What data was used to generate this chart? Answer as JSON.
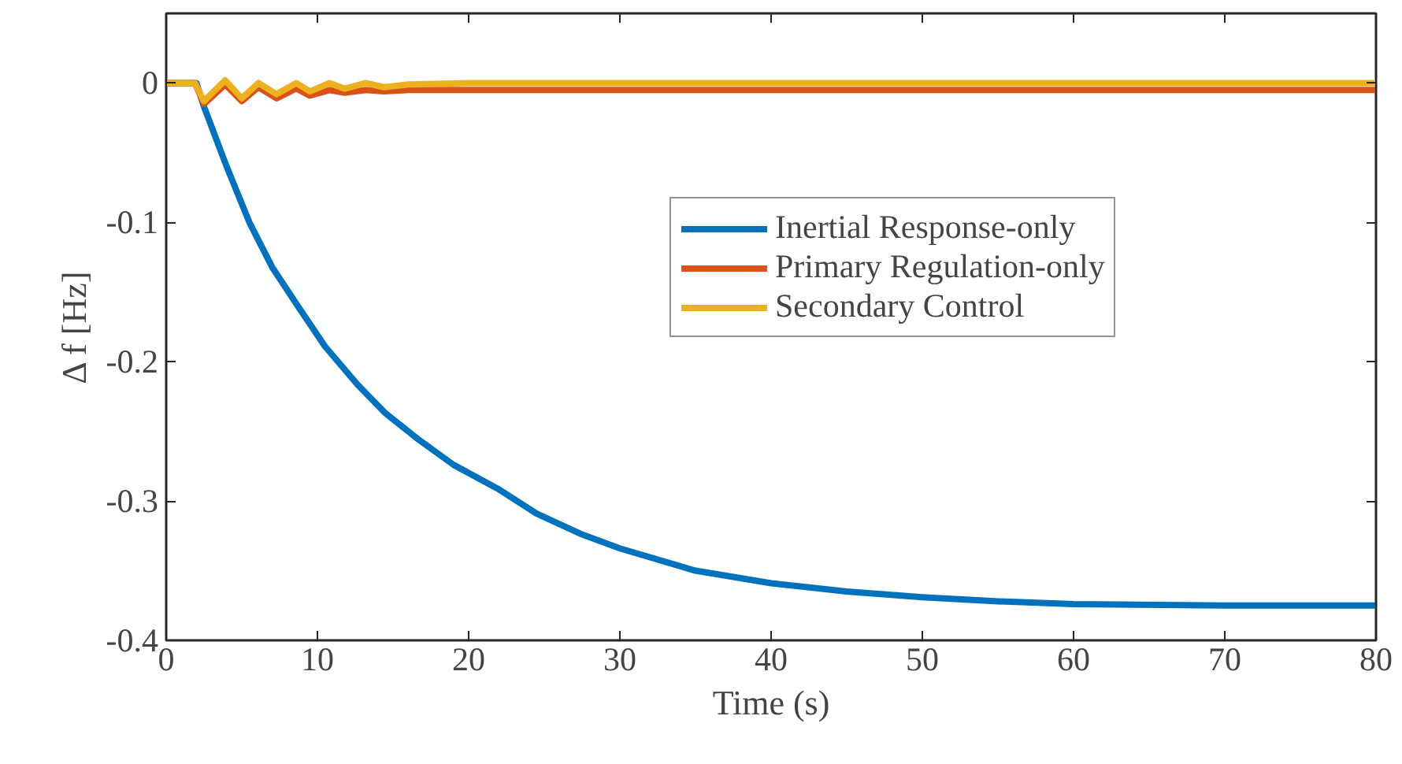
{
  "chart_data": {
    "type": "line",
    "xlabel": "Time (s)",
    "ylabel": "Δ f [Hz]",
    "xlim": [
      0,
      80
    ],
    "xticks": [
      0,
      10,
      20,
      30,
      40,
      50,
      60,
      70,
      80
    ],
    "ylim": [
      -0.4,
      0.05
    ],
    "yticks": [
      -0.4,
      -0.3,
      -0.2,
      -0.1,
      0
    ],
    "grid": false,
    "legend": "top right",
    "marker": "none",
    "line_style": "solid",
    "series": [
      {
        "name": "Inertial Response-only",
        "color": "#0072bd",
        "x": [
          0,
          2,
          2.5,
          4,
          5.5,
          7,
          8.7,
          10.5,
          12.7,
          14.5,
          16.7,
          19,
          21.9,
          24.5,
          27.5,
          30,
          35,
          40,
          45,
          50,
          55,
          60,
          70,
          80
        ],
        "values": [
          0,
          0,
          -0.017,
          -0.06,
          -0.1,
          -0.132,
          -0.16,
          -0.189,
          -0.217,
          -0.237,
          -0.256,
          -0.274,
          -0.291,
          -0.309,
          -0.324,
          -0.334,
          -0.35,
          -0.359,
          -0.365,
          -0.369,
          -0.372,
          -0.374,
          -0.375,
          -0.375
        ]
      },
      {
        "name": "Primary Regulation-only",
        "color": "#d95319",
        "x": [
          0,
          1.9,
          2.5,
          3.9,
          5.0,
          6.1,
          7.3,
          8.6,
          9.5,
          10.8,
          11.8,
          13.2,
          14.4,
          16,
          20,
          30,
          50,
          80
        ],
        "values": [
          0,
          0,
          -0.015,
          -0.001,
          -0.013,
          -0.003,
          -0.011,
          -0.004,
          -0.009,
          -0.005,
          -0.007,
          -0.005,
          -0.006,
          -0.005,
          -0.005,
          -0.005,
          -0.005,
          -0.005
        ]
      },
      {
        "name": "Secondary Control",
        "color": "#edb120",
        "x": [
          0,
          1.9,
          2.5,
          3.9,
          5.0,
          6.1,
          7.3,
          8.6,
          9.5,
          10.8,
          11.8,
          13.2,
          14.4,
          16,
          20,
          30,
          50,
          80
        ],
        "values": [
          0,
          0,
          -0.013,
          0.002,
          -0.011,
          0,
          -0.008,
          0,
          -0.006,
          0,
          -0.004,
          0,
          -0.003,
          -0.001,
          0,
          0,
          0,
          0
        ]
      }
    ]
  }
}
